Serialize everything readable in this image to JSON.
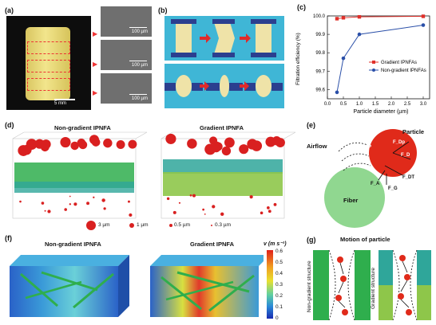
{
  "panels": {
    "a": {
      "label": "(a)",
      "scale_big": "5 mm",
      "scale_sem": [
        "100 µm",
        "100 µm",
        "100 µm"
      ]
    },
    "b": {
      "label": "(b)"
    },
    "c": {
      "label": "(c)"
    },
    "d": {
      "label": "(d)",
      "left_title": "Non-gradient IPNFA",
      "right_title": "Gradient IPNFA",
      "legend": [
        "3 µm",
        "1 µm",
        "0.5 µm",
        "0.3 µm"
      ]
    },
    "e": {
      "label": "(e)",
      "airflow": "Airflow",
      "particle": "Particle",
      "fiber": "Fiber",
      "forces": [
        "F_P",
        "F_Dp",
        "F_D",
        "F_DT",
        "F_A",
        "F_G"
      ]
    },
    "f": {
      "label": "(f)",
      "left_title": "Non-gradient IPNFA",
      "right_title": "Gradient IPNFA",
      "colorbar_title": "v (m s⁻¹)",
      "colorbar_ticks": [
        "0.6",
        "0.5",
        "0.4",
        "0.3",
        "0.2",
        "0.1",
        "0"
      ]
    },
    "g": {
      "label": "(g)",
      "title": "Motion of particle",
      "left": "Non-gradient structure",
      "right": "Gradient structure"
    }
  },
  "chart_data": {
    "type": "line",
    "xlabel": "Particle diameter (µm)",
    "ylabel": "Filtration efficiency (%)",
    "xlim": [
      0,
      3.2
    ],
    "ylim": [
      99.55,
      100.0
    ],
    "xticks": [
      "0.0",
      "0.5",
      "1.0",
      "1.5",
      "2.0",
      "2.5",
      "3.0"
    ],
    "yticks": [
      "99.6",
      "99.7",
      "99.8",
      "99.9",
      "100.0"
    ],
    "legend_position": "center-right",
    "series": [
      {
        "name": "Gradient IPNFAs",
        "color": "#e0302a",
        "x": [
          0.3,
          0.5,
          1.0,
          3.0
        ],
        "y": [
          99.985,
          99.99,
          99.995,
          99.998
        ]
      },
      {
        "name": "Non-gradient IPNFAs",
        "color": "#2a4fa8",
        "x": [
          0.3,
          0.5,
          1.0,
          3.0
        ],
        "y": [
          99.585,
          99.77,
          99.9,
          99.95
        ]
      }
    ]
  }
}
